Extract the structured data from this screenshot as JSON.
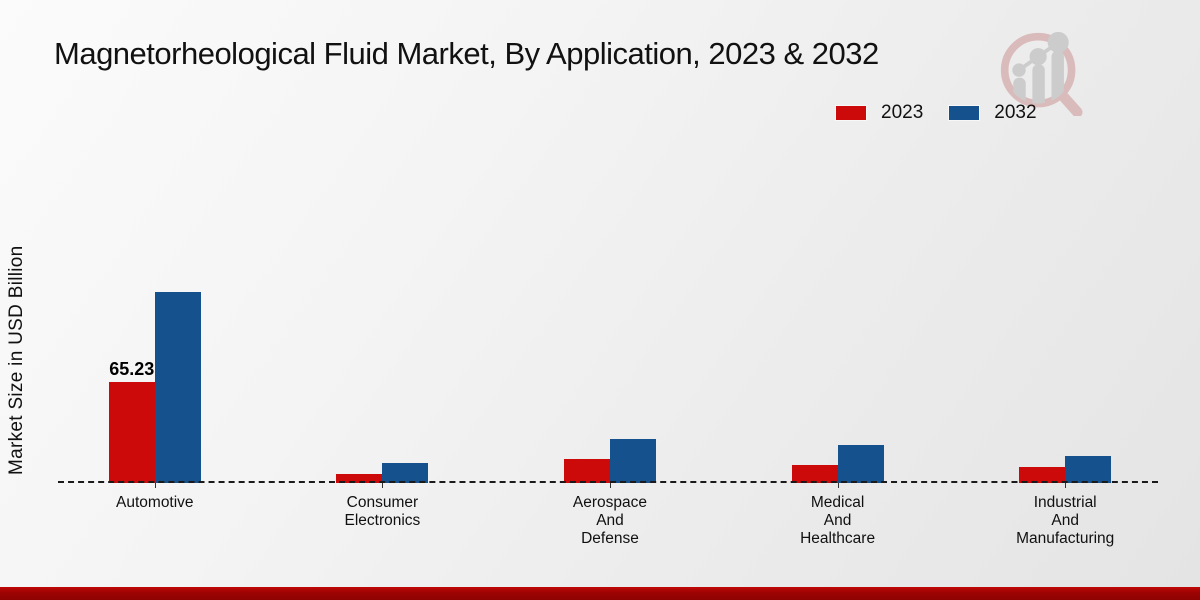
{
  "title": "Magnetorheological Fluid Market, By Application, 2023 & 2032",
  "y_axis_label": "Market Size in USD Billion",
  "legend": [
    {
      "label": "2023",
      "color": "#cc0a0a"
    },
    {
      "label": "2032",
      "color": "#15518c"
    }
  ],
  "accent_colors": {
    "series_2023": "#cc0a0a",
    "series_2032": "#15518c",
    "bottom_strip": "#9c0303",
    "logo_ring": "#d9b6b6",
    "logo_bars": "#c9c9c9"
  },
  "chart_data": {
    "type": "bar",
    "title": "Magnetorheological Fluid Market, By Application, 2023 & 2032",
    "xlabel": "",
    "ylabel": "Market Size in USD Billion",
    "categories": [
      "Automotive",
      "Consumer Electronics",
      "Aerospace And Defense",
      "Medical And Healthcare",
      "Industrial And Manufacturing"
    ],
    "series": [
      {
        "name": "2023",
        "color": "#cc0a0a",
        "values": [
          65.23,
          6.1,
          15.5,
          11.6,
          10.3
        ]
      },
      {
        "name": "2032",
        "color": "#15518c",
        "values": [
          123.4,
          12.7,
          28.4,
          24.5,
          17.2
        ]
      }
    ],
    "annotations": [
      {
        "category_index": 0,
        "series_index": 0,
        "text": "65.23"
      }
    ],
    "ylim": [
      0,
      216
    ],
    "grid": false,
    "baseline_style": "dashed",
    "legend_position": "top-right"
  }
}
